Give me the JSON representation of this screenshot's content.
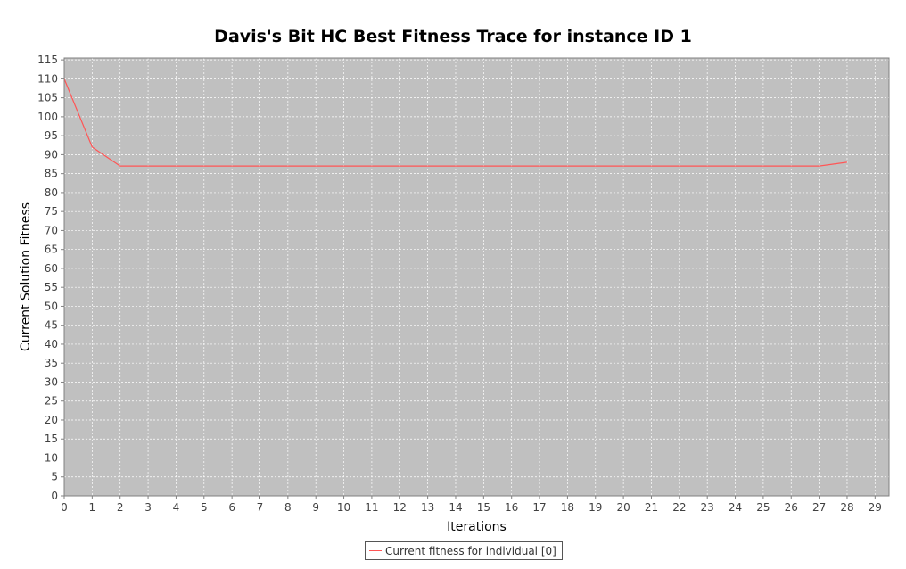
{
  "chart_data": {
    "type": "line",
    "title": "Davis's Bit HC Best Fitness Trace for instance ID 1",
    "xlabel": "Iterations",
    "ylabel": "Current Solution Fitness",
    "xlim": [
      0,
      29.5
    ],
    "ylim": [
      0,
      115.5
    ],
    "xticks": [
      0,
      1,
      2,
      3,
      4,
      5,
      6,
      7,
      8,
      9,
      10,
      11,
      12,
      13,
      14,
      15,
      16,
      17,
      18,
      19,
      20,
      21,
      22,
      23,
      24,
      25,
      26,
      27,
      28,
      29
    ],
    "yticks": [
      0,
      5,
      10,
      15,
      20,
      25,
      30,
      35,
      40,
      45,
      50,
      55,
      60,
      65,
      70,
      75,
      80,
      85,
      90,
      95,
      100,
      105,
      110,
      115
    ],
    "grid": true,
    "legend_position": "bottom-center",
    "series": [
      {
        "name": "Current fitness for individual [0]",
        "color": "#ff5555",
        "x": [
          0,
          1,
          2,
          3,
          4,
          5,
          6,
          7,
          8,
          9,
          10,
          11,
          12,
          13,
          14,
          15,
          16,
          17,
          18,
          19,
          20,
          21,
          22,
          23,
          24,
          25,
          26,
          27,
          28
        ],
        "y": [
          110,
          92,
          87,
          87,
          87,
          87,
          87,
          87,
          87,
          87,
          87,
          87,
          87,
          87,
          87,
          87,
          87,
          87,
          87,
          87,
          87,
          87,
          87,
          87,
          87,
          87,
          87,
          87,
          88
        ]
      }
    ],
    "colors": {
      "plot_background": "#c0c0c0",
      "gridline": "#ffffff",
      "frame": "#808080"
    }
  }
}
